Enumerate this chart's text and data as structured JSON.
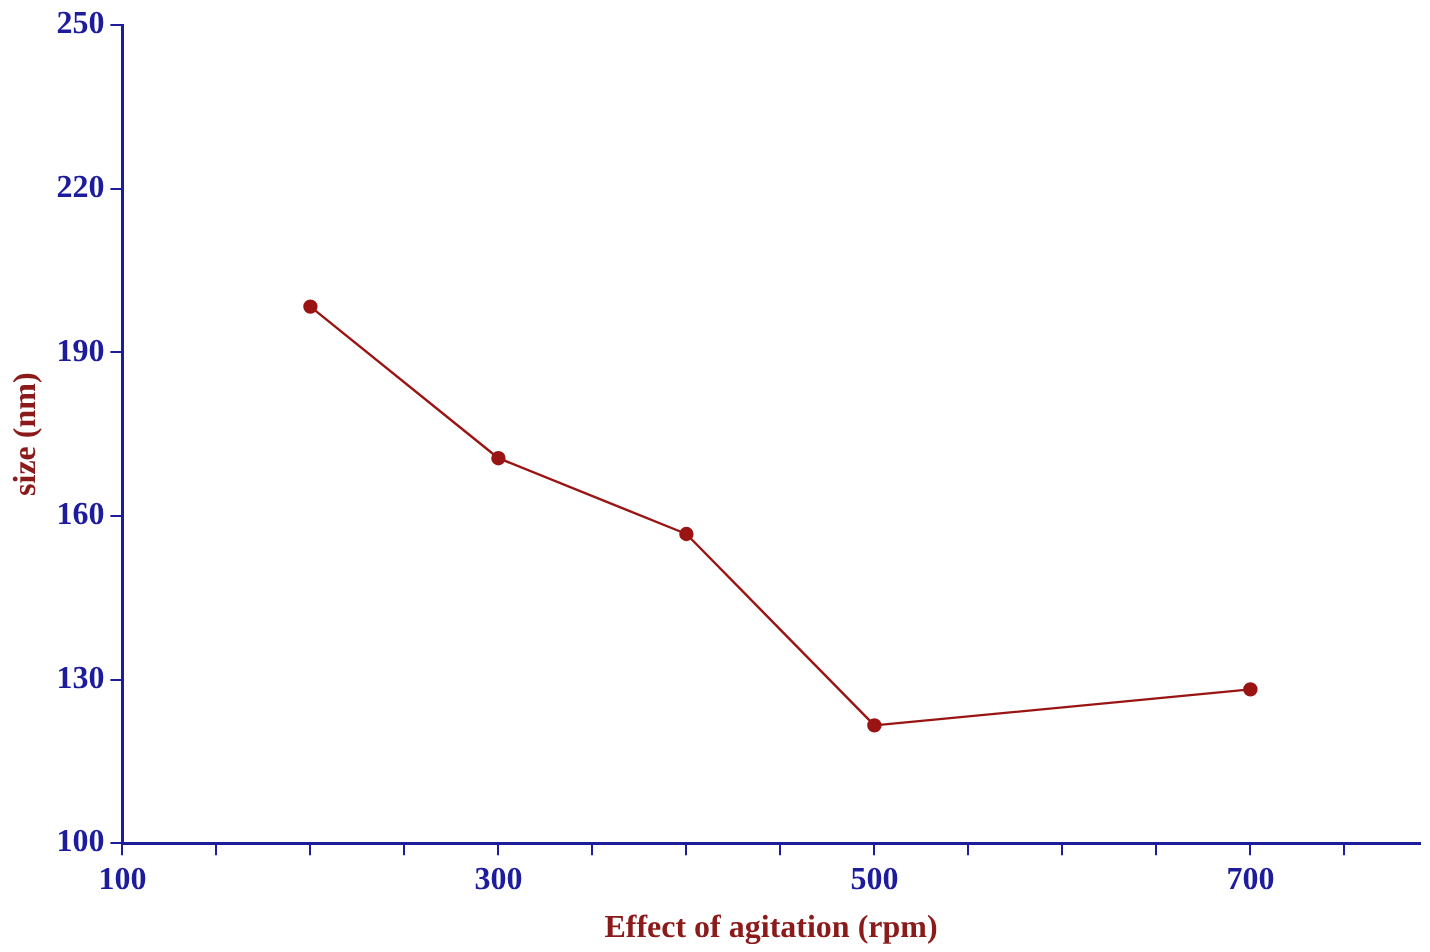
{
  "chart_data": {
    "type": "line",
    "xlabel": "Effect of agitation (rpm)",
    "ylabel": "size (nm)",
    "x": [
      200,
      300,
      400,
      500,
      700
    ],
    "series": [
      {
        "color": "#9b1414",
        "values": [
          198.4,
          170.6,
          156.7,
          121.6,
          128.2
        ]
      }
    ],
    "xlim": [
      100,
      790
    ],
    "xticks": [
      100,
      {
        "value": 150,
        "label": null
      },
      {
        "value": 200,
        "label": null
      },
      {
        "value": 250,
        "label": null
      },
      300,
      {
        "value": 350,
        "label": null
      },
      {
        "value": 400,
        "label": null
      },
      {
        "value": 450,
        "label": null
      },
      500,
      {
        "value": 550,
        "label": null
      },
      {
        "value": 600,
        "label": null
      },
      {
        "value": 650,
        "label": null
      },
      700,
      {
        "value": 750,
        "label": null
      }
    ],
    "ylim": [
      100,
      250
    ],
    "yticks": [
      100,
      130,
      160,
      190,
      220,
      250
    ],
    "grid": false,
    "legend": false,
    "marker": "circle",
    "line_style": "solid"
  }
}
